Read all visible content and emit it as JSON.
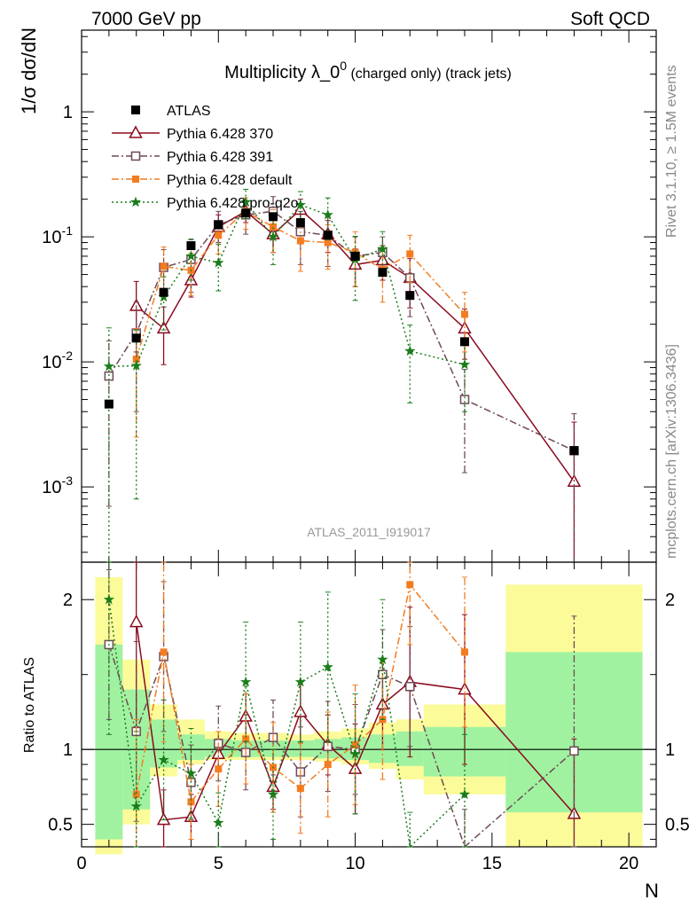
{
  "header": {
    "left": "7000 GeV pp",
    "right": "Soft QCD"
  },
  "side_labels": {
    "top": "Rivet 3.1.10, ≥ 1.5M events",
    "bottom": "mcplots.cern.ch [arXiv:1306.3436]"
  },
  "title": {
    "main": "Multiplicity λ_0",
    "sup": "0",
    "sub": " (charged only) (track jets)"
  },
  "watermark": "ATLAS_2011_I919017",
  "colors": {
    "atlas": "#000000",
    "p370": "#8b0a1f",
    "p391": "#6e4a55",
    "pdefault": "#f47c20",
    "pproq2o": "#1a7d1a",
    "band_inner": "#a0f2a0",
    "band_outer": "#fbfb9a"
  },
  "chart_data": [
    {
      "type": "scatter",
      "ylabel": "1/σ dσ/dN",
      "yscale": "log",
      "ylim": [
        0.00025,
        4.5
      ],
      "xlim": [
        0,
        21
      ],
      "y_ticks": [
        {
          "v": 0.001,
          "label": "10^-3"
        },
        {
          "v": 0.01,
          "label": "10^-2"
        },
        {
          "v": 0.1,
          "label": "10^-1"
        },
        {
          "v": 1,
          "label": "1"
        }
      ],
      "legend": [
        "ATLAS",
        "Pythia 6.428 370",
        "Pythia 6.428 391",
        "Pythia 6.428 default",
        "Pythia 6.428 pro-q2o"
      ],
      "legend_position": "top-left",
      "series": [
        {
          "name": "ATLAS",
          "key": "atlas",
          "marker": "square",
          "x": [
            1,
            2,
            3,
            4,
            5,
            6,
            7,
            8,
            9,
            10,
            11,
            12,
            14,
            18
          ],
          "y": [
            0.0046,
            0.0155,
            0.036,
            0.085,
            0.125,
            0.155,
            0.145,
            0.13,
            0.103,
            0.07,
            0.052,
            0.034,
            0.0145,
            0.00195
          ]
        },
        {
          "name": "Pythia 6.428 370",
          "key": "p370",
          "marker": "triangle",
          "line": "solid",
          "x": [
            2,
            3,
            4,
            5,
            6,
            7,
            8,
            9,
            10,
            11,
            12,
            14,
            18
          ],
          "y": [
            0.028,
            0.0185,
            0.045,
            0.12,
            0.16,
            0.105,
            0.165,
            0.105,
            0.06,
            0.065,
            0.047,
            0.0185,
            0.0011
          ],
          "err": [
            0.016,
            0.009,
            0.012,
            0.03,
            0.03,
            0.03,
            0.035,
            0.03,
            0.02,
            0.02,
            0.02,
            0.008,
            0.0022
          ]
        },
        {
          "name": "Pythia 6.428 391",
          "key": "p391",
          "marker": "opensquare",
          "line": "dashdot",
          "x": [
            1,
            2,
            3,
            4,
            5,
            6,
            7,
            8,
            9,
            10,
            11,
            12,
            14,
            18
          ],
          "y": [
            0.0077,
            0.017,
            0.057,
            0.066,
            0.125,
            0.15,
            0.16,
            0.11,
            0.103,
            0.07,
            0.075,
            0.047,
            0.005,
            0.00195
          ],
          "err": [
            0.007,
            0.013,
            0.022,
            0.03,
            0.035,
            0.045,
            0.05,
            0.05,
            0.045,
            0.03,
            0.025,
            0.024,
            0.0037,
            0.0019
          ]
        },
        {
          "name": "Pythia 6.428 default",
          "key": "pdefault",
          "marker": "filledsquare",
          "line": "dashdot",
          "x": [
            2,
            3,
            4,
            5,
            6,
            7,
            8,
            9,
            10,
            11,
            12,
            14
          ],
          "y": [
            0.0105,
            0.058,
            0.054,
            0.103,
            0.16,
            0.12,
            0.093,
            0.09,
            0.075,
            0.055,
            0.073,
            0.024
          ],
          "err": [
            0.008,
            0.025,
            0.02,
            0.03,
            0.045,
            0.045,
            0.04,
            0.035,
            0.035,
            0.025,
            0.03,
            0.012
          ]
        },
        {
          "name": "Pythia 6.428 pro-q2o",
          "key": "pproq2o",
          "marker": "star",
          "line": "dotted",
          "x": [
            1,
            2,
            3,
            4,
            5,
            6,
            7,
            8,
            9,
            10,
            11,
            12,
            14
          ],
          "y": [
            0.0092,
            0.0093,
            0.033,
            0.07,
            0.062,
            0.19,
            0.1,
            0.18,
            0.15,
            0.066,
            0.08,
            0.0122,
            0.0095
          ],
          "err": [
            0.0095,
            0.0085,
            0.015,
            0.025,
            0.025,
            0.05,
            0.04,
            0.05,
            0.055,
            0.035,
            0.03,
            0.0075,
            0.0055
          ]
        }
      ]
    },
    {
      "type": "scatter",
      "xlabel": "N",
      "ylabel": "Ratio to ATLAS",
      "ylim": [
        0.35,
        2.25
      ],
      "xlim": [
        0,
        21
      ],
      "x_ticks": [
        0,
        5,
        10,
        15,
        20
      ],
      "y_ticks": [
        0.5,
        1,
        2
      ],
      "bands": [
        {
          "x0": 0.5,
          "x1": 1.5,
          "inner": [
            0.4,
            1.7
          ],
          "outer": [
            0.3,
            2.15
          ]
        },
        {
          "x0": 1.5,
          "x1": 2.5,
          "inner": [
            0.6,
            1.4
          ],
          "outer": [
            0.5,
            1.6
          ]
        },
        {
          "x0": 2.5,
          "x1": 3.5,
          "inner": [
            0.88,
            1.2
          ],
          "outer": [
            0.82,
            1.3
          ]
        },
        {
          "x0": 3.5,
          "x1": 4.5,
          "inner": [
            0.93,
            1.1
          ],
          "outer": [
            0.9,
            1.2
          ]
        },
        {
          "x0": 4.5,
          "x1": 5.5,
          "inner": [
            0.95,
            1.07
          ],
          "outer": [
            0.93,
            1.12
          ]
        },
        {
          "x0": 5.5,
          "x1": 6.5,
          "inner": [
            0.95,
            1.06
          ],
          "outer": [
            0.93,
            1.11
          ]
        },
        {
          "x0": 6.5,
          "x1": 7.5,
          "inner": [
            0.95,
            1.06
          ],
          "outer": [
            0.93,
            1.11
          ]
        },
        {
          "x0": 7.5,
          "x1": 8.5,
          "inner": [
            0.95,
            1.06
          ],
          "outer": [
            0.93,
            1.1
          ]
        },
        {
          "x0": 8.5,
          "x1": 9.5,
          "inner": [
            0.94,
            1.07
          ],
          "outer": [
            0.92,
            1.12
          ]
        },
        {
          "x0": 9.5,
          "x1": 10.5,
          "inner": [
            0.93,
            1.08
          ],
          "outer": [
            0.9,
            1.14
          ]
        },
        {
          "x0": 10.5,
          "x1": 11.5,
          "inner": [
            0.91,
            1.1
          ],
          "outer": [
            0.87,
            1.18
          ]
        },
        {
          "x0": 11.5,
          "x1": 12.5,
          "inner": [
            0.89,
            1.12
          ],
          "outer": [
            0.8,
            1.2
          ]
        },
        {
          "x0": 12.5,
          "x1": 15.5,
          "inner": [
            0.82,
            1.15
          ],
          "outer": [
            0.7,
            1.3
          ]
        },
        {
          "x0": 15.5,
          "x1": 20.5,
          "inner": [
            0.58,
            1.65
          ],
          "outer": [
            0.35,
            2.1
          ]
        }
      ],
      "series": [
        {
          "name": "Pythia 6.428 370",
          "key": "p370",
          "marker": "triangle",
          "line": "solid",
          "x": [
            2,
            3,
            4,
            5,
            6,
            7,
            8,
            9,
            10,
            11,
            12,
            14,
            18
          ],
          "y": [
            1.85,
            0.53,
            0.55,
            0.97,
            1.22,
            0.75,
            1.25,
            1.03,
            0.87,
            1.3,
            1.45,
            1.4,
            0.57
          ],
          "err": [
            0.7,
            0.2,
            0.15,
            0.1,
            0.15,
            0.15,
            0.2,
            0.2,
            0.3,
            0.3,
            0.5,
            0.5,
            0.5
          ]
        },
        {
          "name": "Pythia 6.428 391",
          "key": "p391",
          "marker": "opensquare",
          "line": "dashdot",
          "x": [
            1,
            2,
            3,
            4,
            5,
            6,
            7,
            8,
            9,
            10,
            11,
            12,
            14,
            18
          ],
          "y": [
            1.7,
            1.12,
            1.62,
            0.78,
            1.04,
            0.98,
            1.08,
            0.85,
            1.02,
            1.0,
            1.5,
            1.42,
            0.3,
            0.99
          ],
          "err": [
            0.5,
            0.6,
            0.5,
            0.25,
            0.25,
            0.25,
            0.25,
            0.3,
            0.3,
            0.3,
            0.3,
            0.4,
            0.3,
            0.9
          ]
        },
        {
          "name": "Pythia 6.428 default",
          "key": "pdefault",
          "marker": "filledsquare",
          "line": "dashdot",
          "x": [
            2,
            3,
            4,
            5,
            6,
            7,
            8,
            9,
            10,
            11,
            12,
            14
          ],
          "y": [
            0.7,
            1.65,
            0.65,
            0.87,
            1.07,
            0.88,
            0.74,
            0.9,
            1.03,
            1.2,
            2.1,
            1.65
          ],
          "err": [
            0.5,
            0.6,
            0.25,
            0.25,
            0.3,
            0.3,
            0.3,
            0.35,
            0.4,
            0.4,
            0.4,
            0.5
          ]
        },
        {
          "name": "Pythia 6.428 pro-q2o",
          "key": "pproq2o",
          "marker": "star",
          "line": "dotted",
          "x": [
            1,
            2,
            3,
            4,
            5,
            6,
            7,
            8,
            9,
            10,
            11,
            12,
            14
          ],
          "y": [
            2.0,
            0.62,
            0.93,
            0.84,
            0.51,
            1.45,
            0.7,
            1.45,
            1.55,
            0.97,
            1.6,
            0.33,
            0.7
          ],
          "err": [
            0.9,
            0.5,
            0.4,
            0.3,
            0.2,
            0.4,
            0.3,
            0.4,
            0.5,
            0.4,
            0.4,
            0.25,
            0.4
          ]
        }
      ]
    }
  ]
}
